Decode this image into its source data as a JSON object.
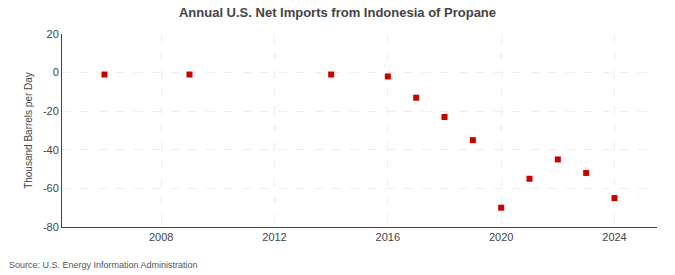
{
  "chart_data": {
    "type": "scatter",
    "title": "Annual U.S. Net Imports from Indonesia of Propane",
    "ylabel": "Thousand Barrels per Day",
    "annotations": [
      "Source: U.S. Energy Information Administration"
    ],
    "x": [
      2006,
      2009,
      2014,
      2016,
      2017,
      2018,
      2019,
      2020,
      2021,
      2022,
      2023,
      2024
    ],
    "values": [
      -1,
      -1,
      -1,
      -2,
      -13,
      -23,
      -35,
      -70,
      -55,
      -45,
      -52,
      -65
    ],
    "color": "#cc0000",
    "marker": "square",
    "xlim": [
      2004.5,
      2025.5
    ],
    "xticks": [
      2008,
      2012,
      2016,
      2020,
      2024
    ],
    "ylim": [
      -80,
      20
    ],
    "yticks": [
      -80,
      -60,
      -40,
      -20,
      0,
      20
    ],
    "grid": true
  }
}
